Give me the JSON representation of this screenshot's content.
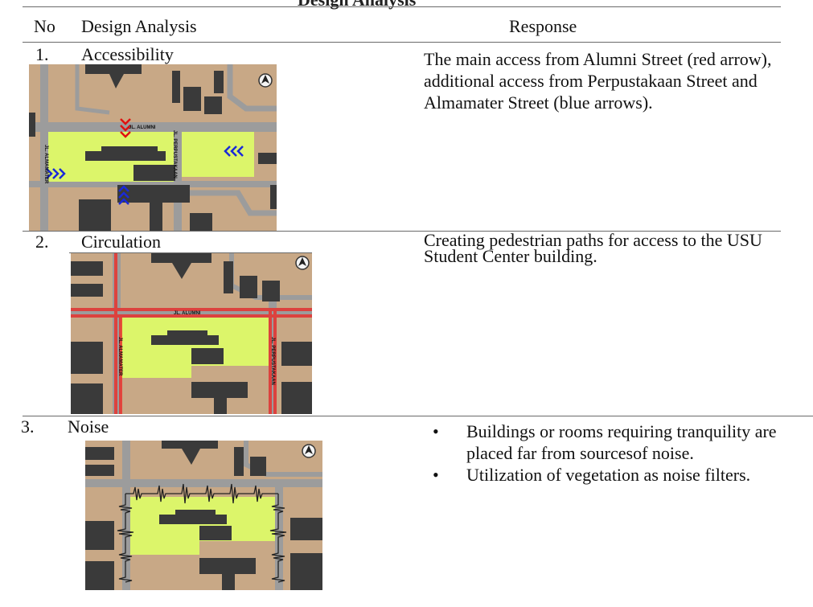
{
  "table": {
    "caption_fragment": "Design Analysis",
    "headers": {
      "no": "No",
      "analysis": "Design Analysis",
      "response": "Response"
    },
    "rows": [
      {
        "no": "1.",
        "analysis": "Accessibility",
        "response": "The main access from Alumni Street (red arrow), additional access from Perpustakaan Street and Almamater Street (blue arrows).",
        "map_labels": {
          "north": "JL. ALUMNI",
          "east": "JL. PERPUSTAKAAN",
          "west": "JL. ALMAMATER"
        }
      },
      {
        "no": "2.",
        "analysis": "Circulation",
        "response": "Creating pedestrian paths for access to the USU Student Center building.",
        "map_labels": {
          "north": "JL. ALUMNI",
          "east": "JL. PERPUSTAKAAN",
          "west": "JL. ALMAMATER"
        }
      },
      {
        "no": "3.",
        "analysis": "Noise",
        "response_items": [
          "Buildings or rooms requiring tranquility are placed far from sourcesof noise.",
          "Utilization of vegetation as noise filters."
        ]
      }
    ]
  },
  "colors": {
    "ground": "#c8a886",
    "road": "#9c9c9c",
    "building": "#3a3a3a",
    "site": "#dcf56a",
    "main_access": "#e01010",
    "secondary_access": "#1a2ad8",
    "pedestrian_path": "#e8332e"
  },
  "icons": {
    "north_arrow": "north-arrow-icon",
    "bullet": "•"
  }
}
